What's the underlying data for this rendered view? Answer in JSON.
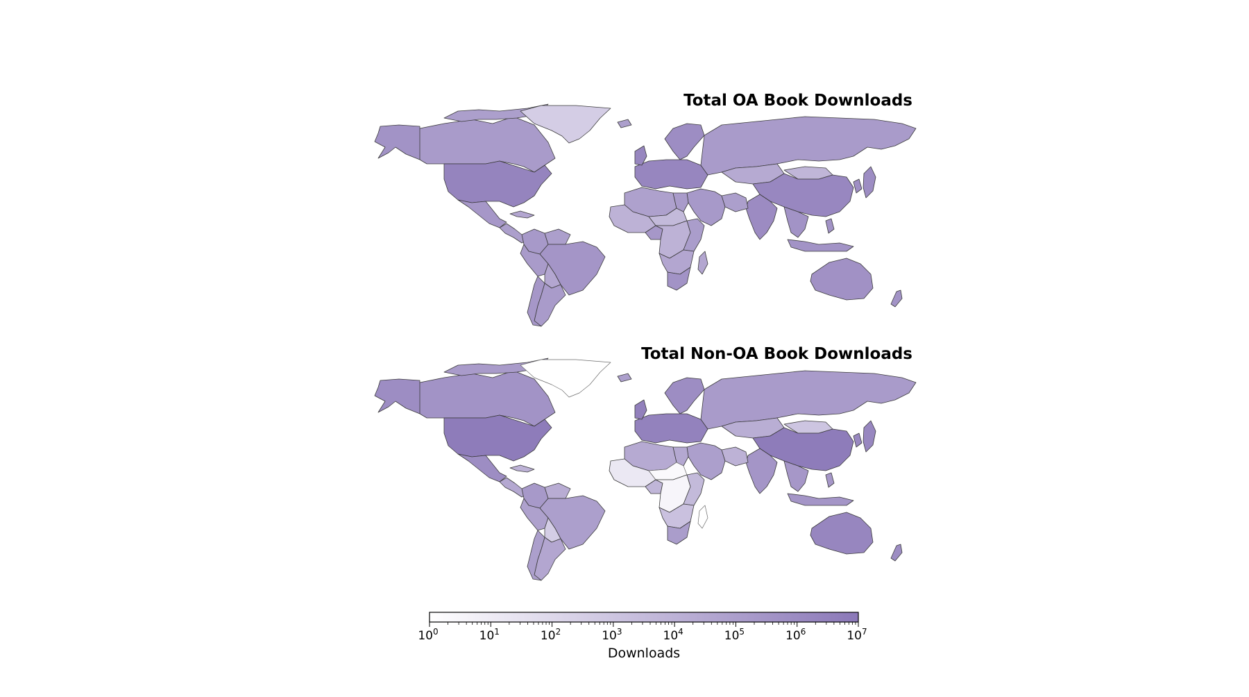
{
  "maps": [
    {
      "id": "oa",
      "title": "Total OA Book Downloads",
      "regions": [
        {
          "name": "Canada",
          "level": 5.2
        },
        {
          "name": "Alaska",
          "level": 5.6
        },
        {
          "name": "Canadian Arctic Islands",
          "level": 5.0
        },
        {
          "name": "Greenland",
          "level": 2.6
        },
        {
          "name": "United States",
          "level": 6.4
        },
        {
          "name": "Mexico",
          "level": 5.4
        },
        {
          "name": "Central America",
          "level": 5.0
        },
        {
          "name": "Cuba",
          "level": 4.6
        },
        {
          "name": "Colombia",
          "level": 5.3
        },
        {
          "name": "Venezuela",
          "level": 5.0
        },
        {
          "name": "Brazil",
          "level": 5.5
        },
        {
          "name": "Peru",
          "level": 5.2
        },
        {
          "name": "Bolivia",
          "level": 4.6
        },
        {
          "name": "Argentina",
          "level": 5.2
        },
        {
          "name": "Chile",
          "level": 5.4
        },
        {
          "name": "Western Europe",
          "level": 6.3
        },
        {
          "name": "Scandinavia",
          "level": 5.9
        },
        {
          "name": "Iceland",
          "level": 5.0
        },
        {
          "name": "United Kingdom",
          "level": 6.3
        },
        {
          "name": "Russia",
          "level": 5.2
        },
        {
          "name": "Kazakhstan",
          "level": 4.4
        },
        {
          "name": "Mongolia",
          "level": 3.8
        },
        {
          "name": "China",
          "level": 6.2
        },
        {
          "name": "India",
          "level": 6.0
        },
        {
          "name": "Middle East",
          "level": 5.3
        },
        {
          "name": "Iran",
          "level": 5.0
        },
        {
          "name": "Southeast Asia",
          "level": 5.6
        },
        {
          "name": "Indonesia",
          "level": 5.6
        },
        {
          "name": "Japan",
          "level": 5.9
        },
        {
          "name": "Korea",
          "level": 5.8
        },
        {
          "name": "Philippines",
          "level": 5.6
        },
        {
          "name": "Australia",
          "level": 5.7
        },
        {
          "name": "New Zealand",
          "level": 5.6
        },
        {
          "name": "North Africa",
          "level": 4.9
        },
        {
          "name": "Egypt",
          "level": 5.2
        },
        {
          "name": "West Africa",
          "level": 4.0
        },
        {
          "name": "Nigeria",
          "level": 5.4
        },
        {
          "name": "Sahel",
          "level": 3.6
        },
        {
          "name": "Central Africa",
          "level": 4.0
        },
        {
          "name": "East Africa",
          "level": 5.1
        },
        {
          "name": "Southern Africa",
          "level": 4.6
        },
        {
          "name": "South Africa",
          "level": 5.6
        },
        {
          "name": "Madagascar",
          "level": 4.6
        }
      ]
    },
    {
      "id": "nonoa",
      "title": "Total Non-OA Book Downloads",
      "regions": [
        {
          "name": "Canada",
          "level": 5.6
        },
        {
          "name": "Alaska",
          "level": 5.9
        },
        {
          "name": "Canadian Arctic Islands",
          "level": 5.2
        },
        {
          "name": "Greenland",
          "level": 0.0
        },
        {
          "name": "United States",
          "level": 6.8
        },
        {
          "name": "Mexico",
          "level": 5.9
        },
        {
          "name": "Central America",
          "level": 4.5
        },
        {
          "name": "Cuba",
          "level": 4.0
        },
        {
          "name": "Colombia",
          "level": 5.3
        },
        {
          "name": "Venezuela",
          "level": 4.3
        },
        {
          "name": "Brazil",
          "level": 5.0
        },
        {
          "name": "Peru",
          "level": 4.9
        },
        {
          "name": "Bolivia",
          "level": 2.6
        },
        {
          "name": "Argentina",
          "level": 4.6
        },
        {
          "name": "Chile",
          "level": 5.0
        },
        {
          "name": "Western Europe",
          "level": 6.5
        },
        {
          "name": "Scandinavia",
          "level": 5.9
        },
        {
          "name": "Iceland",
          "level": 5.0
        },
        {
          "name": "United Kingdom",
          "level": 6.6
        },
        {
          "name": "Russia",
          "level": 5.2
        },
        {
          "name": "Kazakhstan",
          "level": 4.2
        },
        {
          "name": "Mongolia",
          "level": 3.0
        },
        {
          "name": "China",
          "level": 6.8
        },
        {
          "name": "India",
          "level": 5.5
        },
        {
          "name": "Middle East",
          "level": 5.0
        },
        {
          "name": "Iran",
          "level": 4.0
        },
        {
          "name": "Southeast Asia",
          "level": 5.4
        },
        {
          "name": "Indonesia",
          "level": 5.5
        },
        {
          "name": "Japan",
          "level": 6.2
        },
        {
          "name": "Korea",
          "level": 6.2
        },
        {
          "name": "Philippines",
          "level": 5.4
        },
        {
          "name": "Australia",
          "level": 6.3
        },
        {
          "name": "New Zealand",
          "level": 5.9
        },
        {
          "name": "North Africa",
          "level": 4.4
        },
        {
          "name": "Egypt",
          "level": 4.5
        },
        {
          "name": "West Africa",
          "level": 1.2
        },
        {
          "name": "Nigeria",
          "level": 3.8
        },
        {
          "name": "Sahel",
          "level": 0.3
        },
        {
          "name": "Central Africa",
          "level": 0.5
        },
        {
          "name": "East Africa",
          "level": 3.6
        },
        {
          "name": "Southern Africa",
          "level": 3.2
        },
        {
          "name": "South Africa",
          "level": 5.1
        },
        {
          "name": "Madagascar",
          "level": 0.0
        }
      ]
    }
  ],
  "colorbar": {
    "label": "Downloads",
    "min_exponent": 0,
    "max_exponent": 7,
    "scale": "log",
    "tick_base": "10",
    "ticks": [
      "0",
      "1",
      "2",
      "3",
      "4",
      "5",
      "6",
      "7"
    ],
    "color_low": "#ffffff",
    "color_high": "#8b78b8"
  }
}
